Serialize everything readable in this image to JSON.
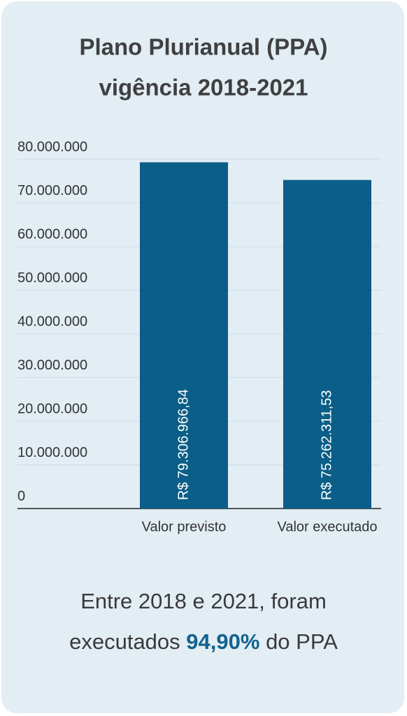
{
  "chart_data": {
    "type": "bar",
    "title": [
      "Plano Plurianual (PPA)",
      "vigência 2018-2021"
    ],
    "categories": [
      "Valor previsto",
      "Valor executado"
    ],
    "values": [
      79306966.84,
      75262311.53
    ],
    "value_labels": [
      "R$ 79.306.966,84",
      "R$ 75.262.311,53"
    ],
    "color": "#0b5e87",
    "ylim": [
      0,
      80000000
    ],
    "yticks": [
      0,
      {
        "value": 10000000,
        "label": "10.000.000"
      },
      {
        "value": 20000000,
        "label": "20.000.000"
      },
      {
        "value": 30000000,
        "label": "30.000.000"
      },
      {
        "value": 40000000,
        "label": "40.000.000"
      },
      {
        "value": 50000000,
        "label": "50.000.000"
      },
      {
        "value": 60000000,
        "label": "60.000.000"
      },
      {
        "value": 70000000,
        "label": "70.000.000"
      },
      {
        "value": 80000000,
        "label": "80.000.000"
      }
    ],
    "grid": true,
    "annotation": [
      "Entre 2018 e 2021, foram",
      "executados",
      "94,90%",
      "do PPA"
    ]
  }
}
